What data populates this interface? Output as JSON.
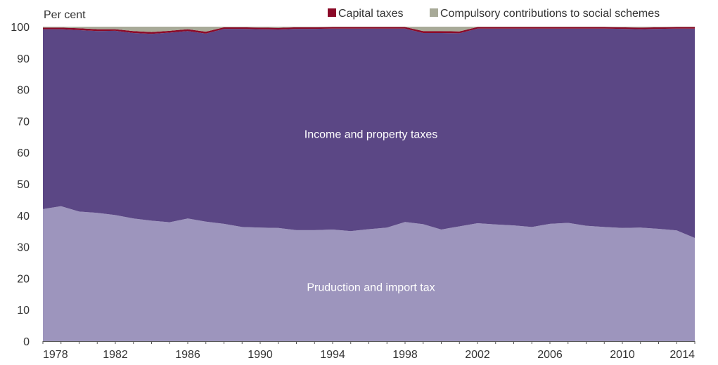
{
  "chart_data": {
    "type": "area",
    "stacked": true,
    "normalized_percent": true,
    "ylabel": "Per cent",
    "ylim": [
      0,
      100
    ],
    "yticks": [
      0,
      10,
      20,
      30,
      40,
      50,
      60,
      70,
      80,
      90,
      100
    ],
    "xlim": [
      1978,
      2014
    ],
    "xticks": [
      1978,
      1982,
      1986,
      1990,
      1994,
      1998,
      2002,
      2006,
      2010,
      2014
    ],
    "x": [
      1978,
      1979,
      1980,
      1981,
      1982,
      1983,
      1984,
      1985,
      1986,
      1987,
      1988,
      1989,
      1990,
      1991,
      1992,
      1993,
      1994,
      1995,
      1996,
      1997,
      1998,
      1999,
      2000,
      2001,
      2002,
      2003,
      2004,
      2005,
      2006,
      2007,
      2008,
      2009,
      2010,
      2011,
      2012,
      2013,
      2014
    ],
    "legend": {
      "placement": "top-right",
      "entries": [
        "Capital taxes",
        "Compulsory contributions to social schemes"
      ]
    },
    "series": [
      {
        "name": "Pruduction and import tax",
        "color": "#9d95bd",
        "values": [
          42.0,
          42.9,
          41.2,
          40.8,
          40.1,
          39.0,
          38.3,
          37.8,
          39.0,
          38.0,
          37.3,
          36.3,
          36.1,
          36.0,
          35.3,
          35.3,
          35.5,
          35.0,
          35.6,
          36.1,
          37.9,
          37.2,
          35.5,
          36.5,
          37.5,
          37.1,
          36.8,
          36.3,
          37.3,
          37.6,
          36.7,
          36.3,
          36.0,
          36.1,
          35.7,
          35.2,
          32.8
        ]
      },
      {
        "name": "Income and property taxes",
        "color": "#5b4785",
        "values": [
          57.2,
          56.3,
          57.7,
          57.8,
          58.6,
          59.0,
          59.4,
          60.3,
          59.6,
          59.8,
          62.0,
          63.0,
          63.1,
          63.1,
          64.0,
          64.0,
          63.9,
          64.4,
          63.8,
          63.3,
          61.5,
          60.8,
          62.5,
          61.4,
          61.9,
          62.3,
          62.6,
          63.1,
          62.1,
          61.8,
          62.7,
          63.1,
          63.3,
          63.1,
          63.6,
          64.2,
          66.6
        ]
      },
      {
        "name": "Capital taxes",
        "color": "#8b0a28",
        "values": [
          0.5,
          0.5,
          0.6,
          0.6,
          0.5,
          0.6,
          0.6,
          0.6,
          0.6,
          0.6,
          0.5,
          0.5,
          0.5,
          0.5,
          0.5,
          0.5,
          0.5,
          0.5,
          0.5,
          0.5,
          0.5,
          0.6,
          0.6,
          0.6,
          0.5,
          0.5,
          0.5,
          0.5,
          0.5,
          0.5,
          0.5,
          0.5,
          0.5,
          0.5,
          0.5,
          0.5,
          0.5
        ]
      },
      {
        "name": "Compulsory contributions to social schemes",
        "color": "#a8aa98",
        "values": [
          0.3,
          0.3,
          0.5,
          0.8,
          0.8,
          1.4,
          1.7,
          1.3,
          0.8,
          1.6,
          0.2,
          0.2,
          0.3,
          0.4,
          0.2,
          0.2,
          0.1,
          0.1,
          0.1,
          0.1,
          0.1,
          1.4,
          1.4,
          1.5,
          0.1,
          0.1,
          0.1,
          0.1,
          0.1,
          0.1,
          0.1,
          0.1,
          0.2,
          0.3,
          0.2,
          0.1,
          0.1
        ]
      }
    ],
    "annotations": [
      {
        "text": "Income and property taxes",
        "series": "Income and property taxes"
      },
      {
        "text": "Pruduction and import tax",
        "series": "Pruduction and import tax"
      }
    ]
  }
}
